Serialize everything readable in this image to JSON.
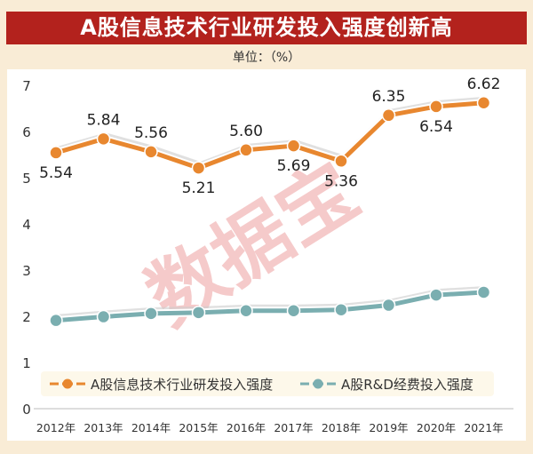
{
  "title": "A股信息技术行业研发投入强度创新高",
  "unit": "单位：（%）",
  "watermark": "数据宝",
  "chart_data": {
    "type": "line",
    "categories": [
      "2012年",
      "2013年",
      "2014年",
      "2015年",
      "2016年",
      "2017年",
      "2018年",
      "2019年",
      "2020年",
      "2021年"
    ],
    "ylim": [
      0,
      7
    ],
    "yticks": [
      0,
      1,
      2,
      3,
      4,
      5,
      6,
      7
    ],
    "grid": false,
    "legend": "bottom",
    "series": [
      {
        "name": "A股信息技术行业研发投入强度",
        "color": "#e8872f",
        "values": [
          5.54,
          5.84,
          5.56,
          5.21,
          5.6,
          5.69,
          5.36,
          6.35,
          6.54,
          6.62
        ],
        "labels": [
          "5.54",
          "5.84",
          "5.56",
          "5.21",
          "5.60",
          "5.69",
          "5.36",
          "6.35",
          "6.54",
          "6.62"
        ],
        "label_pos": [
          "below",
          "above",
          "above",
          "below",
          "above",
          "below",
          "below",
          "above",
          "below",
          "above"
        ]
      },
      {
        "name": "A股R&D经费投入强度",
        "color": "#7aaeb0",
        "values": [
          1.91,
          1.99,
          2.06,
          2.08,
          2.12,
          2.12,
          2.14,
          2.24,
          2.46,
          2.52
        ]
      }
    ]
  }
}
